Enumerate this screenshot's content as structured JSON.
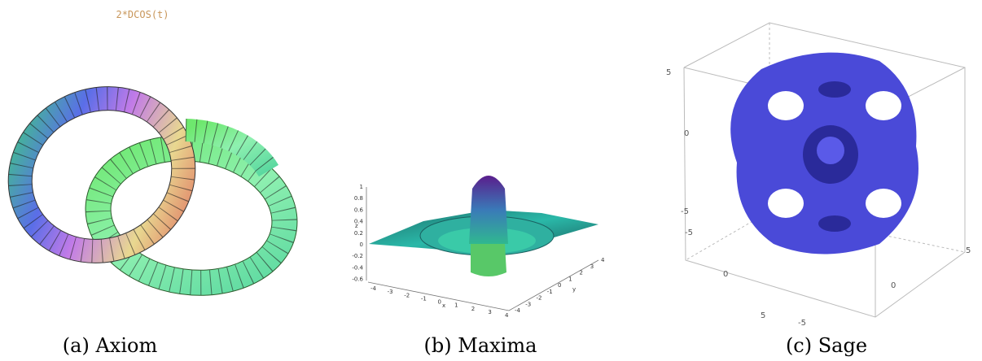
{
  "panels": [
    {
      "caption": "(a) Axiom",
      "title": "2*DCOS(t)"
    },
    {
      "caption": "(b) Maxima",
      "z_label": "z",
      "x_label": "x",
      "y_label": "y",
      "z_ticks": [
        "1",
        "0.8",
        "0.6",
        "0.4",
        "0.2",
        "0",
        "-0.2",
        "-0.4",
        "-0.6"
      ],
      "x_ticks": [
        "-4",
        "-3",
        "-2",
        "-1",
        "0",
        "1",
        "2",
        "3",
        "4"
      ],
      "y_ticks": [
        "-4",
        "-3",
        "-2",
        "-1",
        "0",
        "1",
        "2",
        "3",
        "4"
      ]
    },
    {
      "caption": "(c) Sage",
      "tick_labels": [
        "5",
        "0",
        "-5",
        "-5",
        "0",
        "5",
        "-5",
        "0",
        "5"
      ]
    }
  ]
}
